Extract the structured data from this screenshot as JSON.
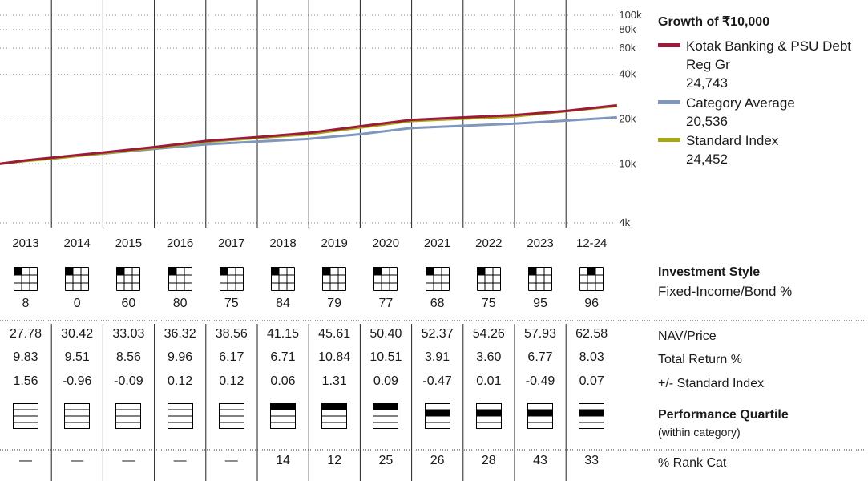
{
  "chart_data": {
    "type": "line",
    "title": "Growth of ₹10,000",
    "y_scale": "log",
    "y_ticks": [
      "100k",
      "80k",
      "60k",
      "40k",
      "20k",
      "10k",
      "4k"
    ],
    "y_tick_values": [
      100000,
      80000,
      60000,
      40000,
      20000,
      10000,
      4000
    ],
    "x_range": [
      "2013-01",
      "2024-12"
    ],
    "series": [
      {
        "name": "Kotak Banking & PSU Debt Reg Gr",
        "final": "24,743",
        "color": "#9b1c3a",
        "x": [
          2013.0,
          2013.5,
          2014.0,
          2015.0,
          2016.0,
          2017.0,
          2018.0,
          2019.0,
          2020.0,
          2021.0,
          2022.0,
          2023.0,
          2024.0,
          2024.99
        ],
        "y": [
          10000,
          10550,
          10983,
          11917,
          12938,
          14226,
          15103,
          16117,
          17859,
          19737,
          20509,
          21247,
          22686,
          24743
        ]
      },
      {
        "name": "Category Average",
        "final": "20,536",
        "color": "#7f97bd",
        "x": [
          2013.0,
          2013.5,
          2014.0,
          2015.0,
          2016.0,
          2017.0,
          2018.0,
          2019.0,
          2020.0,
          2021.0,
          2022.0,
          2023.0,
          2024.0,
          2024.99
        ],
        "y": [
          10000,
          10500,
          10900,
          11700,
          12600,
          13500,
          14100,
          14700,
          15800,
          17400,
          18000,
          18600,
          19500,
          20536
        ]
      },
      {
        "name": "Standard Index",
        "final": "24,452",
        "color": "#a6a80e",
        "x": [
          2013.0,
          2013.5,
          2014.0,
          2015.0,
          2016.0,
          2017.0,
          2018.0,
          2019.0,
          2020.0,
          2021.0,
          2022.0,
          2023.0,
          2024.0,
          2024.99
        ],
        "y": [
          10000,
          10450,
          10810,
          11770,
          12764,
          14030,
          14900,
          15800,
          17500,
          19400,
          20100,
          20800,
          22600,
          24452
        ]
      }
    ]
  },
  "legend": {
    "growth_label": "Growth of ₹10,000",
    "fund_name_line1": "Kotak Banking & PSU Debt",
    "fund_name_line2": "Reg Gr",
    "fund_value": "24,743",
    "category_name": "Category Average",
    "category_value": "20,536",
    "index_name": "Standard Index",
    "index_value": "24,452"
  },
  "table": {
    "years": [
      "2013",
      "2014",
      "2015",
      "2016",
      "2017",
      "2018",
      "2019",
      "2020",
      "2021",
      "2022",
      "2023",
      "12-24"
    ],
    "style_cell": [
      0,
      0,
      0,
      0,
      0,
      0,
      0,
      0,
      0,
      0,
      0,
      1
    ],
    "fixed_income_pct": [
      "8",
      "0",
      "60",
      "80",
      "75",
      "84",
      "79",
      "77",
      "68",
      "75",
      "95",
      "96"
    ],
    "nav": [
      "27.78",
      "30.42",
      "33.03",
      "36.32",
      "38.56",
      "41.15",
      "45.61",
      "50.40",
      "52.37",
      "54.26",
      "57.93",
      "62.58"
    ],
    "total_return": [
      "9.83",
      "9.51",
      "8.56",
      "9.96",
      "6.17",
      "6.71",
      "10.84",
      "10.51",
      "3.91",
      "3.60",
      "6.77",
      "8.03"
    ],
    "plus_minus_index": [
      "1.56",
      "-0.96",
      "-0.09",
      "0.12",
      "0.12",
      "0.06",
      "1.31",
      "0.09",
      "-0.47",
      "0.01",
      "-0.49",
      "0.07"
    ],
    "quartile": [
      0,
      0,
      0,
      0,
      0,
      1,
      1,
      1,
      2,
      2,
      2,
      2
    ],
    "rank_cat": [
      "—",
      "—",
      "—",
      "—",
      "—",
      "14",
      "12",
      "25",
      "26",
      "28",
      "43",
      "33"
    ]
  },
  "labels": {
    "investment_style": "Investment Style",
    "fixed_income": "Fixed-Income/Bond %",
    "nav_price": "NAV/Price",
    "total_return": "Total Return %",
    "plus_minus": "+/- Standard Index",
    "performance_quartile": "Performance Quartile",
    "within_category": "(within category)",
    "rank_cat": "% Rank Cat"
  }
}
